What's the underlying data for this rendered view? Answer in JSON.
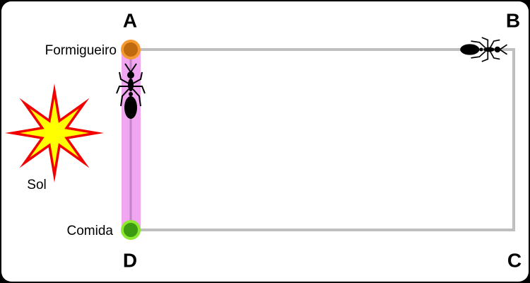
{
  "corners": {
    "a": "A",
    "b": "B",
    "c": "C",
    "d": "D"
  },
  "labels": {
    "nest": "Formigueiro",
    "food": "Comida",
    "sun": "Sol"
  }
}
